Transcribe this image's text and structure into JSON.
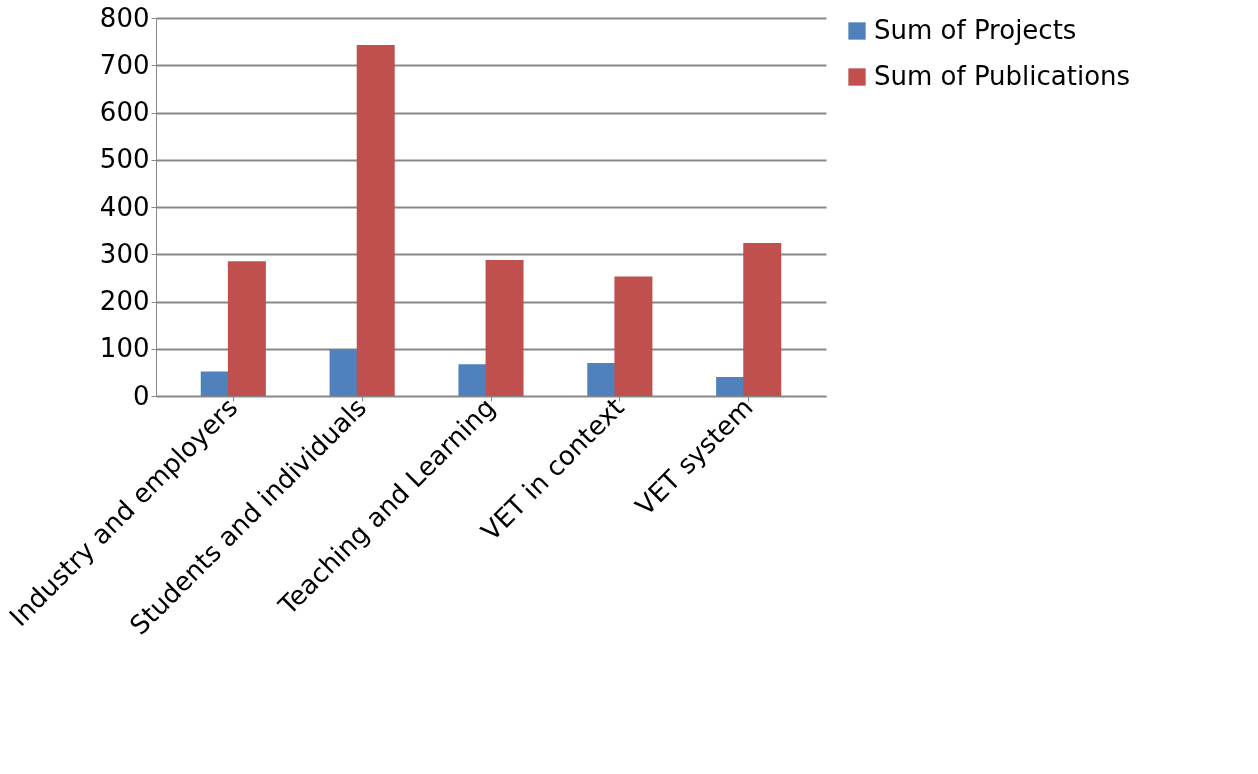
{
  "chart_data": {
    "type": "bar",
    "categories": [
      "Industry and employers",
      "Students and individuals",
      "Teaching and Learning",
      "VET in context",
      "VET system"
    ],
    "series": [
      {
        "name": "Sum of Projects",
        "color": "#4f81bd",
        "values": [
          52,
          99,
          67,
          70,
          40
        ]
      },
      {
        "name": "Sum of Publications",
        "color": "#c0504d",
        "values": [
          285,
          743,
          288,
          253,
          324
        ]
      }
    ],
    "ylim": [
      0,
      800
    ],
    "yticks": [
      0,
      100,
      200,
      300,
      400,
      500,
      600,
      700,
      800
    ],
    "grid": "y",
    "legend": "right"
  }
}
